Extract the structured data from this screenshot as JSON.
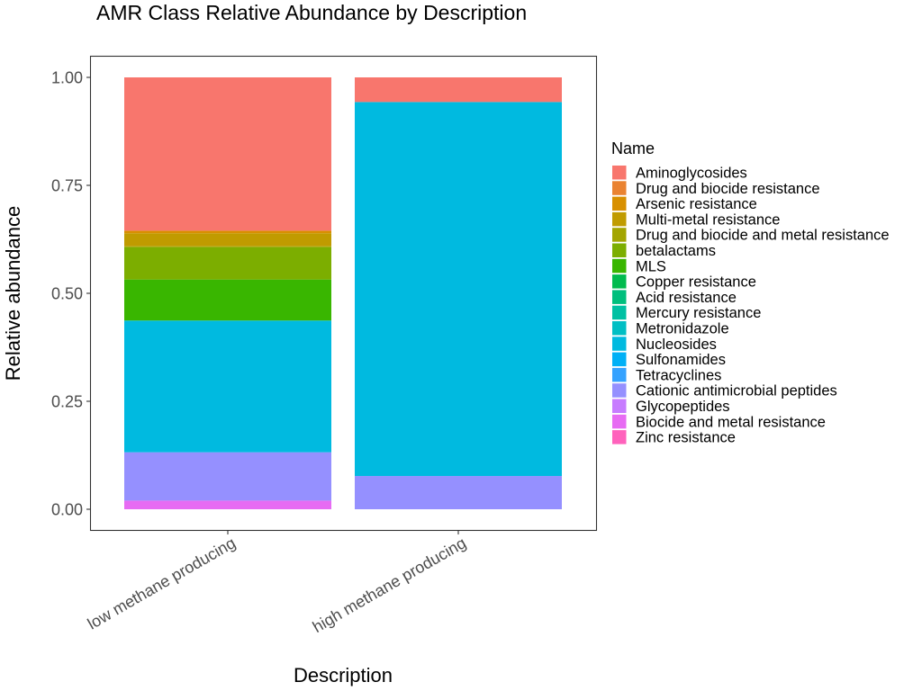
{
  "chart_data": {
    "type": "bar",
    "stacked": true,
    "title": "AMR Class Relative Abundance by Description",
    "xlabel": "Description",
    "ylabel": "Relative abundance",
    "ylim": [
      0,
      1
    ],
    "yticks": [
      "0.00",
      "0.25",
      "0.50",
      "0.75",
      "1.00"
    ],
    "ytick_values": [
      0,
      0.25,
      0.5,
      0.75,
      1.0
    ],
    "categories": [
      "low methane producing",
      "high methane producing"
    ],
    "grid": false,
    "legend_title": "Name",
    "legend_position": "right",
    "series": [
      {
        "name": "Aminoglycosides",
        "color": "#F8766D",
        "values": [
          0.355,
          0.057
        ]
      },
      {
        "name": "Drug and biocide resistance",
        "color": "#EA8331",
        "values": [
          0,
          0
        ]
      },
      {
        "name": "Arsenic resistance",
        "color": "#D89000",
        "values": [
          0.006,
          0
        ]
      },
      {
        "name": "Multi-metal resistance",
        "color": "#C09B00",
        "values": [
          0.03,
          0
        ]
      },
      {
        "name": "Drug and biocide and metal resistance",
        "color": "#A3A500",
        "values": [
          0.002,
          0
        ]
      },
      {
        "name": "betalactams",
        "color": "#7CAE00",
        "values": [
          0.075,
          0
        ]
      },
      {
        "name": "MLS",
        "color": "#39B600",
        "values": [
          0.095,
          0
        ]
      },
      {
        "name": "Copper resistance",
        "color": "#00BB4E",
        "values": [
          0,
          0
        ]
      },
      {
        "name": "Acid resistance",
        "color": "#00BF7D",
        "values": [
          0,
          0
        ]
      },
      {
        "name": "Mercury resistance",
        "color": "#00C1A3",
        "values": [
          0,
          0
        ]
      },
      {
        "name": "Metronidazole",
        "color": "#00BFC4",
        "values": [
          0,
          0
        ]
      },
      {
        "name": "Nucleosides",
        "color": "#00BAE0",
        "values": [
          0.305,
          0.866
        ]
      },
      {
        "name": "Sulfonamides",
        "color": "#00B0F6",
        "values": [
          0,
          0
        ]
      },
      {
        "name": "Tetracyclines",
        "color": "#35A2FF",
        "values": [
          0,
          0
        ]
      },
      {
        "name": "Cationic antimicrobial peptides",
        "color": "#9590FF",
        "values": [
          0.112,
          0.077
        ]
      },
      {
        "name": "Glycopeptides",
        "color": "#C77CFF",
        "values": [
          0,
          0
        ]
      },
      {
        "name": "Biocide and metal resistance",
        "color": "#E76BF3",
        "values": [
          0.02,
          0
        ]
      },
      {
        "name": "Zinc resistance",
        "color": "#FF62BC",
        "values": [
          0,
          0
        ]
      }
    ],
    "legend_colors": [
      "#F8766D",
      "#EA8331",
      "#D89000",
      "#C09B00",
      "#A3A500",
      "#7CAE00",
      "#39B600",
      "#00BB4E",
      "#00BF7D",
      "#00C1A3",
      "#00BFC4",
      "#00BAE0",
      "#00B0F6",
      "#35A2FF",
      "#9590FF",
      "#C77CFF",
      "#E76BF3",
      "#FF62BC"
    ]
  }
}
